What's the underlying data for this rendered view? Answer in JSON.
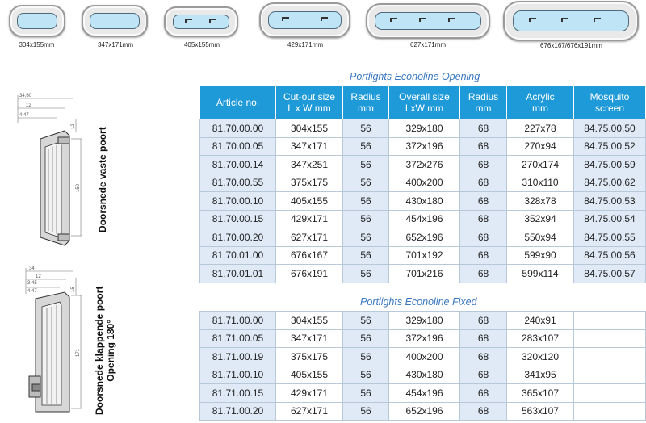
{
  "thumbnails": [
    {
      "caption": "304x155mm"
    },
    {
      "caption": "347x171mm"
    },
    {
      "caption": "405x155mm"
    },
    {
      "caption": "429x171mm"
    },
    {
      "caption": "627x171mm"
    },
    {
      "caption": "676x167/676x191mm"
    }
  ],
  "drawings": {
    "fixed": {
      "label": "Doorsnede vaste poort",
      "dims": [
        "34,60",
        "12",
        "4,47",
        "12",
        "150"
      ]
    },
    "hinged": {
      "label_line1": "Doorsnede klappende poort",
      "label_line2": "Opening 180°",
      "dims": [
        "34",
        "12",
        "3,45",
        "4,47",
        "15",
        "171"
      ]
    }
  },
  "opening_table": {
    "title": "Portlights Econoline Opening",
    "headers": [
      {
        "line1": "Article no.",
        "line2": ""
      },
      {
        "line1": "Cut-out size",
        "line2": "L x W mm"
      },
      {
        "line1": "Radius",
        "line2": "mm"
      },
      {
        "line1": "Overall size",
        "line2": "LxW mm"
      },
      {
        "line1": "Radius",
        "line2": "mm"
      },
      {
        "line1": "Acrylic",
        "line2": "mm"
      },
      {
        "line1": "Mosquito",
        "line2": "screen"
      }
    ],
    "rows": [
      [
        "81.70.00.00",
        "304x155",
        "56",
        "329x180",
        "68",
        "227x78",
        "84.75.00.50"
      ],
      [
        "81.70.00.05",
        "347x171",
        "56",
        "372x196",
        "68",
        "270x94",
        "84.75.00.52"
      ],
      [
        "81.70.00.14",
        "347x251",
        "56",
        "372x276",
        "68",
        "270x174",
        "84.75.00.59"
      ],
      [
        "81.70.00.55",
        "375x175",
        "56",
        "400x200",
        "68",
        "310x110",
        "84.75.00.62"
      ],
      [
        "81.70.00.10",
        "405x155",
        "56",
        "430x180",
        "68",
        "328x78",
        "84.75.00.53"
      ],
      [
        "81.70.00.15",
        "429x171",
        "56",
        "454x196",
        "68",
        "352x94",
        "84.75.00.54"
      ],
      [
        "81.70.00.20",
        "627x171",
        "56",
        "652x196",
        "68",
        "550x94",
        "84.75.00.55"
      ],
      [
        "81.70.01.00",
        "676x167",
        "56",
        "701x192",
        "68",
        "599x90",
        "84.75.00.56"
      ],
      [
        "81.70.01.01",
        "676x191",
        "56",
        "701x216",
        "68",
        "599x114",
        "84.75.00.57"
      ]
    ]
  },
  "fixed_table": {
    "title": "Portlights Econoline Fixed",
    "rows": [
      [
        "81.71.00.00",
        "304x155",
        "56",
        "329x180",
        "68",
        "240x91",
        ""
      ],
      [
        "81.71.00.05",
        "347x171",
        "56",
        "372x196",
        "68",
        "283x107",
        ""
      ],
      [
        "81.71.00.19",
        "375x175",
        "56",
        "400x200",
        "68",
        "320x120",
        ""
      ],
      [
        "81.71.00.10",
        "405x155",
        "56",
        "430x180",
        "68",
        "341x95",
        ""
      ],
      [
        "81.71.00.15",
        "429x171",
        "56",
        "454x196",
        "68",
        "365x107",
        ""
      ],
      [
        "81.71.00.20",
        "627x171",
        "56",
        "652x196",
        "68",
        "563x107",
        ""
      ]
    ]
  }
}
